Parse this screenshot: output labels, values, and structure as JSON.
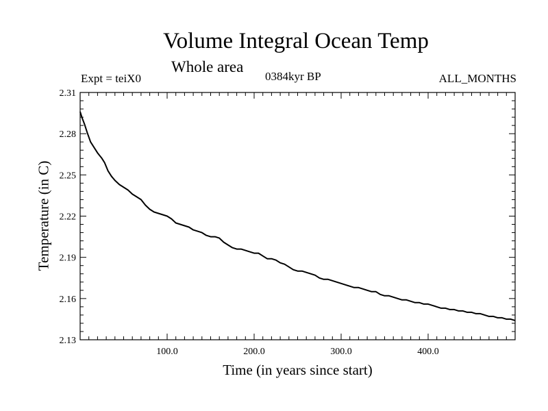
{
  "chart_data": {
    "type": "line",
    "title": "Volume Integral Ocean Temp",
    "subtitle": "Whole area",
    "experiment": "Expt = teiX0",
    "period": "0384kyr BP",
    "months": "ALL_MONTHS",
    "xlabel": "Time (in years since start)",
    "ylabel": "Temperature (in C)",
    "xlim": [
      0,
      500
    ],
    "ylim": [
      2.13,
      2.31
    ],
    "x_ticks": [
      100,
      200,
      300,
      400
    ],
    "x_tick_labels": [
      "100.0",
      "200.0",
      "300.0",
      "400.0"
    ],
    "y_ticks": [
      2.13,
      2.16,
      2.19,
      2.22,
      2.25,
      2.28,
      2.31
    ],
    "y_tick_labels": [
      "2.13",
      "2.16",
      "2.19",
      "2.22",
      "2.25",
      "2.28",
      "2.31"
    ],
    "grid": false,
    "series": [
      {
        "color": "#000000",
        "x": [
          0,
          2,
          5,
          8,
          12,
          16,
          20,
          25,
          28,
          32,
          36,
          40,
          45,
          50,
          55,
          60,
          65,
          70,
          75,
          80,
          85,
          90,
          95,
          100,
          105,
          110,
          115,
          120,
          125,
          130,
          135,
          140,
          145,
          150,
          155,
          160,
          165,
          170,
          175,
          180,
          185,
          190,
          195,
          200,
          205,
          210,
          215,
          220,
          225,
          230,
          235,
          240,
          245,
          250,
          255,
          260,
          265,
          270,
          275,
          280,
          285,
          290,
          295,
          300,
          305,
          310,
          315,
          320,
          325,
          330,
          335,
          340,
          345,
          350,
          355,
          360,
          365,
          370,
          375,
          380,
          385,
          390,
          395,
          400,
          405,
          410,
          415,
          420,
          425,
          430,
          435,
          440,
          445,
          450,
          455,
          460,
          465,
          470,
          475,
          480,
          485,
          490,
          495,
          500
        ],
        "y": [
          2.296,
          2.292,
          2.287,
          2.281,
          2.274,
          2.27,
          2.266,
          2.262,
          2.259,
          2.253,
          2.249,
          2.246,
          2.243,
          2.241,
          2.239,
          2.236,
          2.234,
          2.232,
          2.228,
          2.225,
          2.223,
          2.222,
          2.221,
          2.22,
          2.218,
          2.215,
          2.214,
          2.213,
          2.212,
          2.21,
          2.209,
          2.208,
          2.206,
          2.205,
          2.205,
          2.204,
          2.201,
          2.199,
          2.197,
          2.196,
          2.196,
          2.195,
          2.194,
          2.193,
          2.193,
          2.191,
          2.189,
          2.189,
          2.188,
          2.186,
          2.185,
          2.183,
          2.181,
          2.18,
          2.18,
          2.179,
          2.178,
          2.177,
          2.175,
          2.174,
          2.174,
          2.173,
          2.172,
          2.171,
          2.17,
          2.169,
          2.168,
          2.168,
          2.167,
          2.166,
          2.165,
          2.165,
          2.163,
          2.162,
          2.162,
          2.161,
          2.16,
          2.159,
          2.159,
          2.158,
          2.157,
          2.157,
          2.156,
          2.156,
          2.155,
          2.154,
          2.153,
          2.153,
          2.152,
          2.152,
          2.151,
          2.151,
          2.15,
          2.15,
          2.149,
          2.149,
          2.148,
          2.147,
          2.147,
          2.146,
          2.146,
          2.145,
          2.145,
          2.144
        ]
      }
    ]
  }
}
